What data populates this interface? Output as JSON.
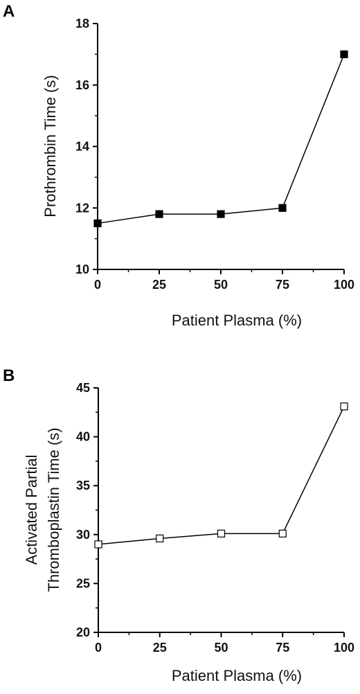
{
  "chart_data": [
    {
      "type": "line",
      "panel_label": "A",
      "title": "",
      "xlabel": "Patient Plasma (%)",
      "ylabel": "Prothrombin Time (s)",
      "xlim": [
        0,
        100
      ],
      "ylim": [
        10,
        18
      ],
      "x_ticks": [
        "0",
        "25",
        "50",
        "75",
        "100"
      ],
      "y_ticks": [
        "10",
        "12",
        "14",
        "16",
        "18"
      ],
      "grid": false,
      "series": [
        {
          "marker": "filled-square",
          "color": "#000000",
          "x": [
            0,
            25,
            50,
            75,
            100
          ],
          "values": [
            11.5,
            11.8,
            11.8,
            12.0,
            17.0
          ]
        }
      ]
    },
    {
      "type": "line",
      "panel_label": "B",
      "title": "",
      "xlabel": "Patient Plasma (%)",
      "ylabel": [
        "Activated Partial",
        "Thromboplastin Time (s)"
      ],
      "xlim": [
        0,
        100
      ],
      "ylim": [
        20,
        45
      ],
      "x_ticks": [
        "0",
        "25",
        "50",
        "75",
        "100"
      ],
      "y_ticks": [
        "20",
        "25",
        "30",
        "35",
        "40",
        "45"
      ],
      "grid": false,
      "series": [
        {
          "marker": "open-square",
          "color": "#000000",
          "x": [
            0,
            25,
            50,
            75,
            100
          ],
          "values": [
            29.0,
            29.6,
            30.1,
            30.1,
            43.1
          ]
        }
      ]
    }
  ]
}
